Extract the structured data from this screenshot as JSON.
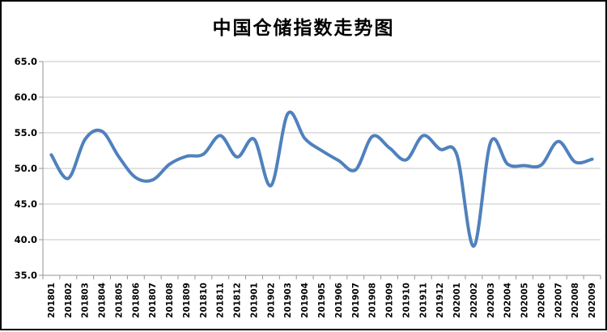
{
  "title": "中国仓储指数走势图",
  "chart_data": {
    "type": "line",
    "title": "中国仓储指数走势图",
    "series_name": "中国仓储指数",
    "categories": [
      "201801",
      "201802",
      "201803",
      "201804",
      "201805",
      "201806",
      "201807",
      "201808",
      "201809",
      "201810",
      "201811",
      "201812",
      "201901",
      "201902",
      "201903",
      "201904",
      "201905",
      "201906",
      "201907",
      "201908",
      "201909",
      "201910",
      "201911",
      "201912",
      "202001",
      "202002",
      "202003",
      "202004",
      "202005",
      "202006",
      "202007",
      "202008",
      "202009"
    ],
    "values": [
      51.9,
      48.6,
      54.1,
      55.2,
      51.6,
      48.7,
      48.4,
      50.6,
      51.7,
      52.0,
      54.6,
      51.6,
      54.1,
      47.6,
      57.7,
      54.2,
      52.5,
      51.1,
      49.8,
      54.5,
      52.9,
      51.2,
      54.6,
      52.7,
      51.9,
      39.1,
      53.7,
      50.6,
      50.4,
      50.5,
      53.8,
      50.9,
      51.3
    ],
    "xlabel": "",
    "ylabel": "",
    "ylim": [
      35,
      65
    ],
    "y_tick_step": 5,
    "y_tick_labels": [
      "35.0",
      "40.0",
      "45.0",
      "50.0",
      "55.0",
      "60.0",
      "65.0"
    ],
    "grid": "horizontal",
    "legend": "none",
    "smooth_line": true,
    "colors": {
      "line": "#4F81BD",
      "gridline": "#C6C6C6",
      "axis": "#969696",
      "text": "#000000",
      "background": "#FFFFFF",
      "border": "#000000"
    }
  }
}
